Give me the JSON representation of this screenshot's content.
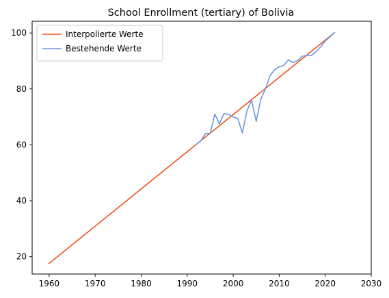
{
  "chart_data": {
    "type": "line",
    "title": "School Enrollment (tertiary) of Bolivia",
    "xlabel": "",
    "ylabel": "",
    "xlim": [
      1956.3,
      2030
    ],
    "ylim": [
      13.8,
      104.2
    ],
    "xticks": [
      1960,
      1970,
      1980,
      1990,
      2000,
      2010,
      2020,
      2030
    ],
    "yticks": [
      20,
      40,
      60,
      80,
      100
    ],
    "grid": false,
    "legend_position": "top-left",
    "series": [
      {
        "name": "Interpolierte Werte",
        "color": "#f0511a",
        "x": [
          1960,
          1992,
          2022
        ],
        "y": [
          17.6,
          60.2,
          100.1
        ]
      },
      {
        "name": "Bestehende Werte",
        "color": "#6a95e4",
        "x": [
          1992,
          1993,
          1994,
          1995,
          1996,
          1997,
          1998,
          1999,
          2000,
          2001,
          2002,
          2003,
          2004,
          2005,
          2006,
          2007,
          2008,
          2009,
          2010,
          2011,
          2012,
          2013,
          2014,
          2015,
          2016,
          2017,
          2018,
          2019,
          2020,
          2021,
          2022
        ],
        "y": [
          60.2,
          61.5,
          64.1,
          64.1,
          71.0,
          67.5,
          71.2,
          70.9,
          70.0,
          69.4,
          64.2,
          72.3,
          76.0,
          68.4,
          76.3,
          80.0,
          84.7,
          86.8,
          87.9,
          88.4,
          90.4,
          89.4,
          90.1,
          91.7,
          92.0,
          92.0,
          93.3,
          95.0,
          97.1,
          98.6,
          100.1
        ]
      }
    ]
  }
}
